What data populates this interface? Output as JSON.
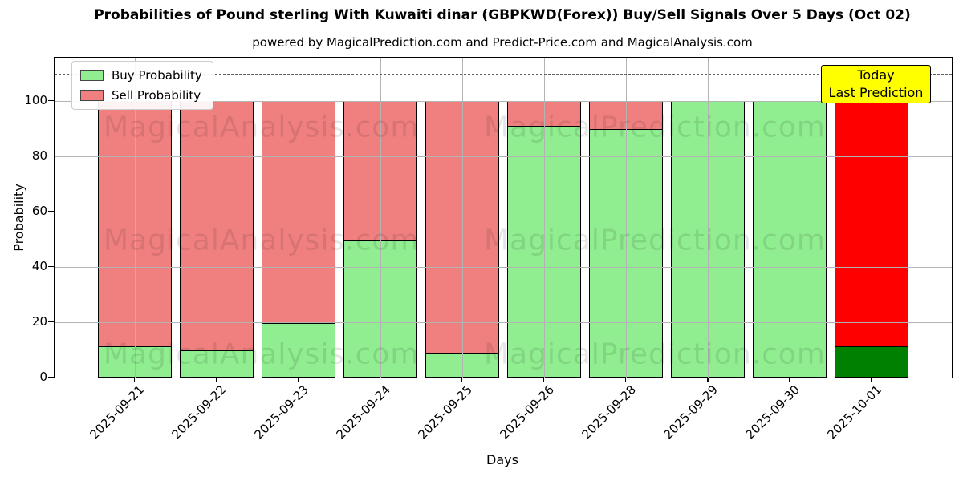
{
  "header": {
    "title": "Probabilities of Pound sterling With Kuwaiti dinar (GBPKWD(Forex)) Buy/Sell Signals Over 5 Days (Oct 02)",
    "subtitle": "powered by MagicalPrediction.com and Predict-Price.com and MagicalAnalysis.com"
  },
  "legend": {
    "items": [
      {
        "label": "Buy Probability",
        "color": "#90EE90"
      },
      {
        "label": "Sell Probability",
        "color": "#F08080"
      }
    ]
  },
  "annotation_box": {
    "line1": "Today",
    "line2": "Last Prediction",
    "bg": "#FFFF00"
  },
  "watermarks": {
    "left_text": "MagicalAnalysis.com",
    "right_text": "MagicalPrediction.com"
  },
  "chart_data": {
    "type": "bar",
    "stacked": true,
    "title": "Probabilities of Pound sterling With Kuwaiti dinar (GBPKWD(Forex)) Buy/Sell Signals Over 5 Days (Oct 02)",
    "xlabel": "Days",
    "ylabel": "Probability",
    "yticks": [
      0,
      20,
      40,
      60,
      80,
      100
    ],
    "ylim": [
      0,
      115.7
    ],
    "grid": true,
    "legend_position": "upper left",
    "dashed_hline": 110,
    "categories": [
      "2025-09-21",
      "2025-09-22",
      "2025-09-23",
      "2025-09-24",
      "2025-09-25",
      "2025-09-26",
      "2025-09-28",
      "2025-09-29",
      "2025-09-30",
      "2025-10-01"
    ],
    "series": [
      {
        "name": "Buy Probability",
        "color": "#90EE90",
        "values": [
          11.3,
          10.0,
          19.7,
          49.5,
          9.0,
          91.0,
          89.8,
          100.0,
          100.0,
          11.3
        ]
      },
      {
        "name": "Sell Probability",
        "color": "#F08080",
        "values": [
          88.7,
          90.0,
          80.3,
          50.5,
          91.0,
          9.0,
          10.2,
          0.0,
          0.0,
          88.7
        ]
      }
    ],
    "today": {
      "index": 9,
      "buy_color": "#008000",
      "sell_color": "#FF0000"
    }
  },
  "colors": {
    "bar_edge": "#000000",
    "grid": "#b3b3b3",
    "dashed_line": "#606060",
    "background": "#ffffff"
  }
}
